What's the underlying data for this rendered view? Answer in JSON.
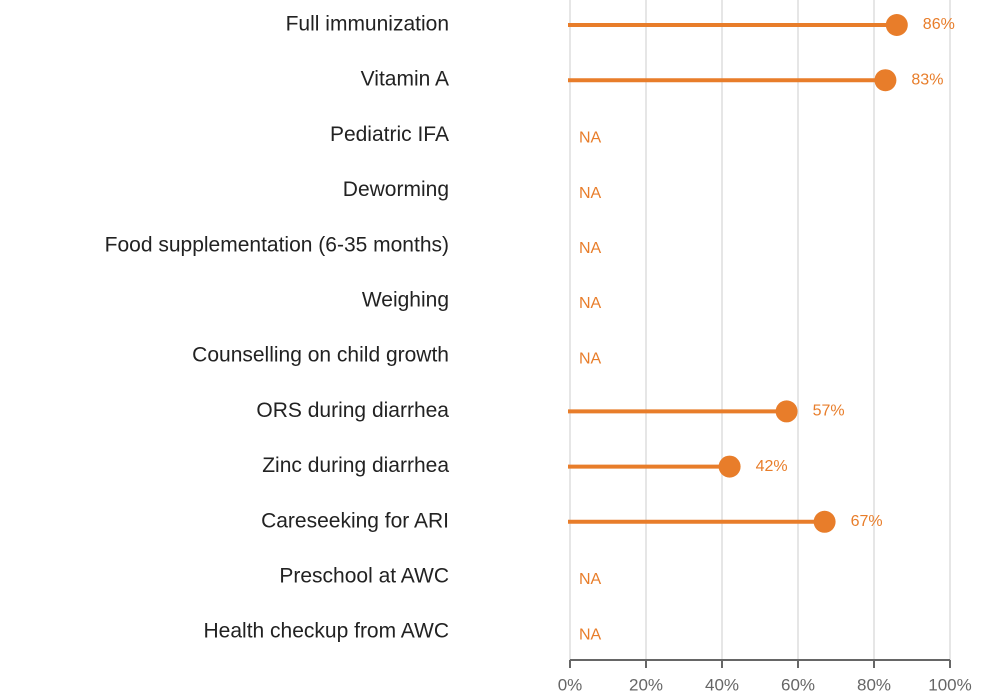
{
  "chart_data": {
    "type": "lollipop",
    "categories": [
      "Full immunization",
      "Vitamin A",
      "Pediatric IFA",
      "Deworming",
      "Food supplementation (6-35 months)",
      "Weighing",
      "Counselling on child growth",
      "ORS during diarrhea",
      "Zinc during diarrhea",
      "Careseeking for ARI",
      "Preschool at AWC",
      "Health checkup from AWC"
    ],
    "values": [
      86,
      83,
      null,
      null,
      null,
      null,
      null,
      57,
      42,
      67,
      null,
      null
    ],
    "value_labels": [
      "86%",
      "83%",
      "NA",
      "NA",
      "NA",
      "NA",
      "NA",
      "57%",
      "42%",
      "67%",
      "NA",
      "NA"
    ],
    "color": "#e87d2a",
    "xlim": [
      0,
      100
    ],
    "xticks": [
      {
        "value": 0,
        "label": "0%"
      },
      {
        "value": 20,
        "label": "20%"
      },
      {
        "value": 40,
        "label": "40%"
      },
      {
        "value": 60,
        "label": "60%"
      },
      {
        "value": 80,
        "label": "80%"
      },
      {
        "value": 100,
        "label": "100%"
      }
    ],
    "grid": true
  }
}
